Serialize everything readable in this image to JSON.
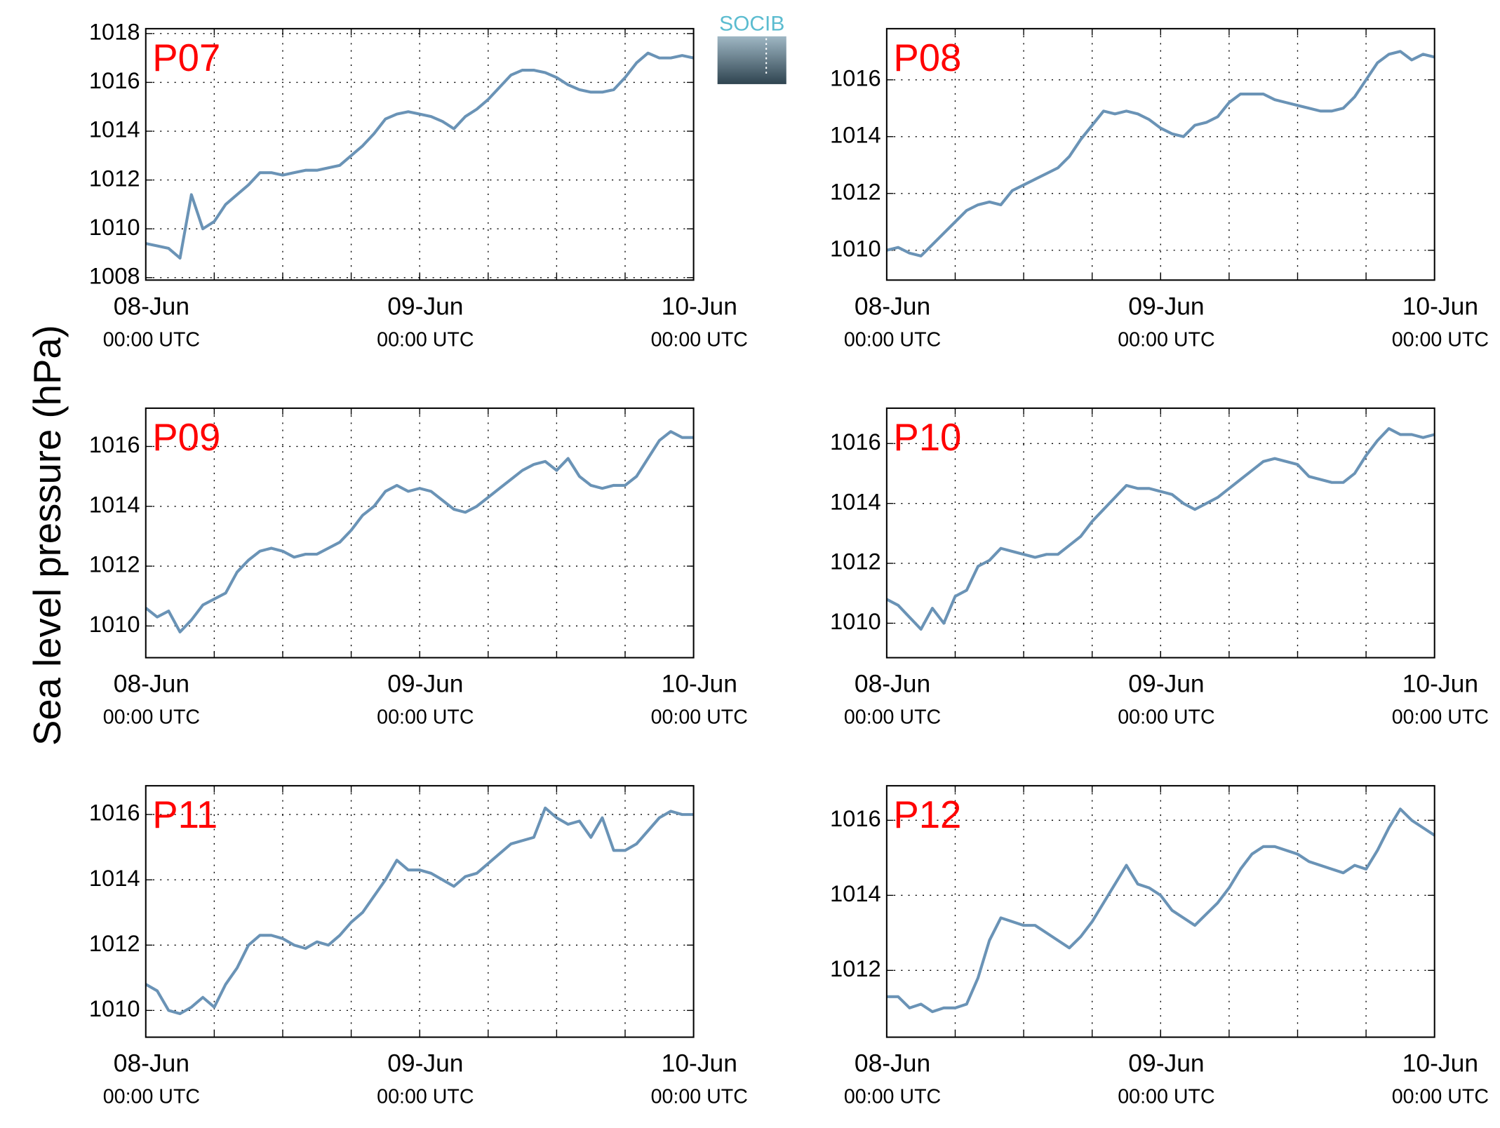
{
  "ylabel": "Sea level pressure (hPa)",
  "logo": "SOCIB",
  "chart_data": [
    {
      "type": "line",
      "title": "P07",
      "x": [
        0,
        1,
        2,
        3,
        4,
        5,
        6,
        7,
        8,
        9,
        10,
        11,
        12,
        13,
        14,
        15,
        16,
        17,
        18,
        19,
        20,
        21,
        22,
        23,
        24,
        25,
        26,
        27,
        28,
        29,
        30,
        31,
        32,
        33,
        34,
        35,
        36,
        37,
        38,
        39,
        40,
        41,
        42,
        43,
        44,
        45,
        46,
        47,
        48
      ],
      "series": [
        {
          "name": "P07",
          "color": "#6a93b6",
          "values": [
            1009.4,
            1009.3,
            1009.2,
            1008.8,
            1011.4,
            1010.0,
            1010.3,
            1011.0,
            1011.4,
            1011.8,
            1012.3,
            1012.3,
            1012.2,
            1012.3,
            1012.4,
            1012.4,
            1012.5,
            1012.6,
            1013.0,
            1013.4,
            1013.9,
            1014.5,
            1014.7,
            1014.8,
            1014.7,
            1014.6,
            1014.4,
            1014.1,
            1014.6,
            1014.9,
            1015.3,
            1015.8,
            1016.3,
            1016.5,
            1016.5,
            1016.4,
            1016.2,
            1015.9,
            1015.7,
            1015.6,
            1015.6,
            1015.7,
            1016.2,
            1016.8,
            1017.2,
            1017.0,
            1017.0,
            1017.1,
            1017.0
          ]
        }
      ],
      "xlim": [
        0,
        48
      ],
      "xticks": [
        {
          "value": 0,
          "label": [
            "08-Jun",
            "00:00 UTC"
          ]
        },
        {
          "value": 24,
          "label": [
            "09-Jun",
            "00:00 UTC"
          ]
        },
        {
          "value": 48,
          "label": [
            "10-Jun",
            "00:00 UTC"
          ]
        }
      ],
      "xgrid": [
        6,
        12,
        18,
        24,
        30,
        36,
        42
      ],
      "ylim": [
        1007.9,
        1018.2
      ],
      "yticks": [
        1008,
        1010,
        1012,
        1014,
        1016,
        1018
      ],
      "grid": true
    },
    {
      "type": "line",
      "title": "P08",
      "x": [
        0,
        1,
        2,
        3,
        4,
        5,
        6,
        7,
        8,
        9,
        10,
        11,
        12,
        13,
        14,
        15,
        16,
        17,
        18,
        19,
        20,
        21,
        22,
        23,
        24,
        25,
        26,
        27,
        28,
        29,
        30,
        31,
        32,
        33,
        34,
        35,
        36,
        37,
        38,
        39,
        40,
        41,
        42,
        43,
        44,
        45,
        46,
        47,
        48
      ],
      "series": [
        {
          "name": "P08",
          "color": "#6a93b6",
          "values": [
            1010.0,
            1010.1,
            1009.9,
            1009.8,
            1010.2,
            1010.6,
            1011.0,
            1011.4,
            1011.6,
            1011.7,
            1011.6,
            1012.1,
            1012.3,
            1012.5,
            1012.7,
            1012.9,
            1013.3,
            1013.9,
            1014.4,
            1014.9,
            1014.8,
            1014.9,
            1014.8,
            1014.6,
            1014.3,
            1014.1,
            1014.0,
            1014.4,
            1014.5,
            1014.7,
            1015.2,
            1015.5,
            1015.5,
            1015.5,
            1015.3,
            1015.2,
            1015.1,
            1015.0,
            1014.9,
            1014.9,
            1015.0,
            1015.4,
            1016.0,
            1016.6,
            1016.9,
            1017.0,
            1016.7,
            1016.9,
            1016.8
          ]
        }
      ],
      "xlim": [
        0,
        48
      ],
      "xticks": [
        {
          "value": 0,
          "label": [
            "08-Jun",
            "00:00 UTC"
          ]
        },
        {
          "value": 24,
          "label": [
            "09-Jun",
            "00:00 UTC"
          ]
        },
        {
          "value": 48,
          "label": [
            "10-Jun",
            "00:00 UTC"
          ]
        }
      ],
      "xgrid": [
        6,
        12,
        18,
        24,
        30,
        36,
        42
      ],
      "ylim": [
        1008.95,
        1017.8
      ],
      "yticks": [
        1010,
        1012,
        1014,
        1016
      ],
      "grid": true
    },
    {
      "type": "line",
      "title": "P09",
      "x": [
        0,
        1,
        2,
        3,
        4,
        5,
        6,
        7,
        8,
        9,
        10,
        11,
        12,
        13,
        14,
        15,
        16,
        17,
        18,
        19,
        20,
        21,
        22,
        23,
        24,
        25,
        26,
        27,
        28,
        29,
        30,
        31,
        32,
        33,
        34,
        35,
        36,
        37,
        38,
        39,
        40,
        41,
        42,
        43,
        44,
        45,
        46,
        47,
        48
      ],
      "series": [
        {
          "name": "P09",
          "color": "#6a93b6",
          "values": [
            1010.6,
            1010.3,
            1010.5,
            1009.8,
            1010.2,
            1010.7,
            1010.9,
            1011.1,
            1011.8,
            1012.2,
            1012.5,
            1012.6,
            1012.5,
            1012.3,
            1012.4,
            1012.4,
            1012.6,
            1012.8,
            1013.2,
            1013.7,
            1014.0,
            1014.5,
            1014.7,
            1014.5,
            1014.6,
            1014.5,
            1014.2,
            1013.9,
            1013.8,
            1014.0,
            1014.3,
            1014.6,
            1014.9,
            1015.2,
            1015.4,
            1015.5,
            1015.2,
            1015.6,
            1015.0,
            1014.7,
            1014.6,
            1014.7,
            1014.7,
            1015.0,
            1015.6,
            1016.2,
            1016.5,
            1016.3,
            1016.3
          ]
        }
      ],
      "xlim": [
        0,
        48
      ],
      "xticks": [
        {
          "value": 0,
          "label": [
            "08-Jun",
            "00:00 UTC"
          ]
        },
        {
          "value": 24,
          "label": [
            "09-Jun",
            "00:00 UTC"
          ]
        },
        {
          "value": 48,
          "label": [
            "10-Jun",
            "00:00 UTC"
          ]
        }
      ],
      "xgrid": [
        6,
        12,
        18,
        24,
        30,
        36,
        42
      ],
      "ylim": [
        1008.94,
        1017.28
      ],
      "yticks": [
        1010,
        1012,
        1014,
        1016
      ],
      "grid": true
    },
    {
      "type": "line",
      "title": "P10",
      "x": [
        0,
        1,
        2,
        3,
        4,
        5,
        6,
        7,
        8,
        9,
        10,
        11,
        12,
        13,
        14,
        15,
        16,
        17,
        18,
        19,
        20,
        21,
        22,
        23,
        24,
        25,
        26,
        27,
        28,
        29,
        30,
        31,
        32,
        33,
        34,
        35,
        36,
        37,
        38,
        39,
        40,
        41,
        42,
        43,
        44,
        45,
        46,
        47,
        48
      ],
      "series": [
        {
          "name": "P10",
          "color": "#6a93b6",
          "values": [
            1010.8,
            1010.6,
            1010.2,
            1009.8,
            1010.5,
            1010.0,
            1010.9,
            1011.1,
            1011.9,
            1012.1,
            1012.5,
            1012.4,
            1012.3,
            1012.2,
            1012.3,
            1012.3,
            1012.6,
            1012.9,
            1013.4,
            1013.8,
            1014.2,
            1014.6,
            1014.5,
            1014.5,
            1014.4,
            1014.3,
            1014.0,
            1013.8,
            1014.0,
            1014.2,
            1014.5,
            1014.8,
            1015.1,
            1015.4,
            1015.5,
            1015.4,
            1015.3,
            1014.9,
            1014.8,
            1014.7,
            1014.7,
            1015.0,
            1015.6,
            1016.1,
            1016.5,
            1016.3,
            1016.3,
            1016.2,
            1016.3
          ]
        }
      ],
      "xlim": [
        0,
        48
      ],
      "xticks": [
        {
          "value": 0,
          "label": [
            "08-Jun",
            "00:00 UTC"
          ]
        },
        {
          "value": 24,
          "label": [
            "09-Jun",
            "00:00 UTC"
          ]
        },
        {
          "value": 48,
          "label": [
            "10-Jun",
            "00:00 UTC"
          ]
        }
      ],
      "xgrid": [
        6,
        12,
        18,
        24,
        30,
        36,
        42
      ],
      "ylim": [
        1008.85,
        1017.18
      ],
      "yticks": [
        1010,
        1012,
        1014,
        1016
      ],
      "grid": true
    },
    {
      "type": "line",
      "title": "P11",
      "x": [
        0,
        1,
        2,
        3,
        4,
        5,
        6,
        7,
        8,
        9,
        10,
        11,
        12,
        13,
        14,
        15,
        16,
        17,
        18,
        19,
        20,
        21,
        22,
        23,
        24,
        25,
        26,
        27,
        28,
        29,
        30,
        31,
        32,
        33,
        34,
        35,
        36,
        37,
        38,
        39,
        40,
        41,
        42,
        43,
        44,
        45,
        46,
        47,
        48
      ],
      "series": [
        {
          "name": "P11",
          "color": "#6a93b6",
          "values": [
            1010.8,
            1010.6,
            1010.0,
            1009.9,
            1010.1,
            1010.4,
            1010.1,
            1010.8,
            1011.3,
            1012.0,
            1012.3,
            1012.3,
            1012.2,
            1012.0,
            1011.9,
            1012.1,
            1012.0,
            1012.3,
            1012.7,
            1013.0,
            1013.5,
            1014.0,
            1014.6,
            1014.3,
            1014.3,
            1014.2,
            1014.0,
            1013.8,
            1014.1,
            1014.2,
            1014.5,
            1014.8,
            1015.1,
            1015.2,
            1015.3,
            1016.2,
            1015.9,
            1015.7,
            1015.8,
            1015.3,
            1015.9,
            1014.9,
            1014.9,
            1015.1,
            1015.5,
            1015.9,
            1016.1,
            1016.0,
            1016.0
          ]
        }
      ],
      "xlim": [
        0,
        48
      ],
      "xticks": [
        {
          "value": 0,
          "label": [
            "08-Jun",
            "00:00 UTC"
          ]
        },
        {
          "value": 24,
          "label": [
            "09-Jun",
            "00:00 UTC"
          ]
        },
        {
          "value": 48,
          "label": [
            "10-Jun",
            "00:00 UTC"
          ]
        }
      ],
      "xgrid": [
        6,
        12,
        18,
        24,
        30,
        36,
        42
      ],
      "ylim": [
        1009.18,
        1016.88
      ],
      "yticks": [
        1010,
        1012,
        1014,
        1016
      ],
      "grid": true
    },
    {
      "type": "line",
      "title": "P12",
      "x": [
        0,
        1,
        2,
        3,
        4,
        5,
        6,
        7,
        8,
        9,
        10,
        11,
        12,
        13,
        14,
        15,
        16,
        17,
        18,
        19,
        20,
        21,
        22,
        23,
        24,
        25,
        26,
        27,
        28,
        29,
        30,
        31,
        32,
        33,
        34,
        35,
        36,
        37,
        38,
        39,
        40,
        41,
        42,
        43,
        44,
        45,
        46,
        47,
        48
      ],
      "series": [
        {
          "name": "P12",
          "color": "#6a93b6",
          "values": [
            1011.3,
            1011.3,
            1011.0,
            1011.1,
            1010.9,
            1011.0,
            1011.0,
            1011.1,
            1011.8,
            1012.8,
            1013.4,
            1013.3,
            1013.2,
            1013.2,
            1013.0,
            1012.8,
            1012.6,
            1012.9,
            1013.3,
            1013.8,
            1014.3,
            1014.8,
            1014.3,
            1014.2,
            1014.0,
            1013.6,
            1013.4,
            1013.2,
            1013.5,
            1013.8,
            1014.2,
            1014.7,
            1015.1,
            1015.3,
            1015.3,
            1015.2,
            1015.1,
            1014.9,
            1014.8,
            1014.7,
            1014.6,
            1014.8,
            1014.7,
            1015.2,
            1015.8,
            1016.3,
            1016.0,
            1015.8,
            1015.6
          ]
        }
      ],
      "xlim": [
        0,
        48
      ],
      "xticks": [
        {
          "value": 0,
          "label": [
            "08-Jun",
            "00:00 UTC"
          ]
        },
        {
          "value": 24,
          "label": [
            "09-Jun",
            "00:00 UTC"
          ]
        },
        {
          "value": 48,
          "label": [
            "10-Jun",
            "00:00 UTC"
          ]
        }
      ],
      "xgrid": [
        6,
        12,
        18,
        24,
        30,
        36,
        42
      ],
      "ylim": [
        1010.22,
        1016.92
      ],
      "yticks": [
        1012,
        1014,
        1016
      ],
      "grid": true
    }
  ]
}
